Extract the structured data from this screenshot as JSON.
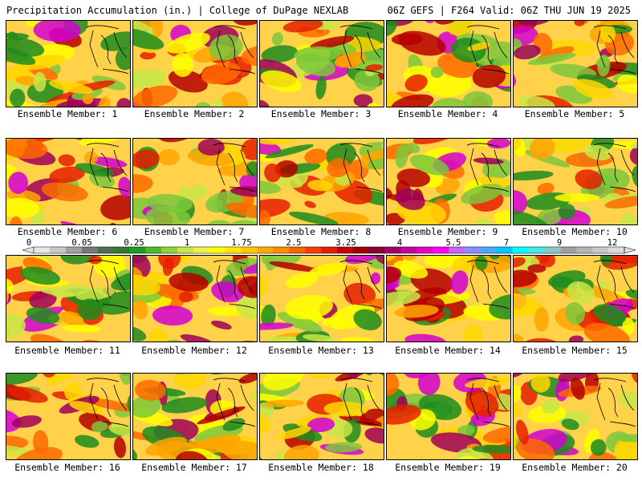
{
  "header": {
    "left": "Precipitation Accumulation (in.) | College of DuPage NEXLAB",
    "right": "06Z GEFS | F264 Valid: 06Z THU JUN 19 2025"
  },
  "members": [
    {
      "label": "Ensemble Member: 1"
    },
    {
      "label": "Ensemble Member: 2"
    },
    {
      "label": "Ensemble Member: 3"
    },
    {
      "label": "Ensemble Member: 4"
    },
    {
      "label": "Ensemble Member: 5"
    },
    {
      "label": "Ensemble Member: 6"
    },
    {
      "label": "Ensemble Member: 7"
    },
    {
      "label": "Ensemble Member: 8"
    },
    {
      "label": "Ensemble Member: 9"
    },
    {
      "label": "Ensemble Member: 10"
    },
    {
      "label": "Ensemble Member: 11"
    },
    {
      "label": "Ensemble Member: 12"
    },
    {
      "label": "Ensemble Member: 13"
    },
    {
      "label": "Ensemble Member: 14"
    },
    {
      "label": "Ensemble Member: 15"
    },
    {
      "label": "Ensemble Member: 16"
    },
    {
      "label": "Ensemble Member: 17"
    },
    {
      "label": "Ensemble Member: 18"
    },
    {
      "label": "Ensemble Member: 19"
    },
    {
      "label": "Ensemble Member: 20"
    }
  ],
  "colorbar": {
    "labels": [
      "0",
      "0.05",
      "0.25",
      "1",
      "1.75",
      "2.5",
      "3.25",
      "4",
      "5.5",
      "7",
      "9",
      "12"
    ],
    "colors": [
      "#e6e6e6",
      "#c8c8c8",
      "#a0a0a0",
      "#787878",
      "#506e50",
      "#2e7d2e",
      "#1e9e1e",
      "#4cb82c",
      "#8cd23a",
      "#c8e646",
      "#f0f046",
      "#ffff00",
      "#ffe600",
      "#ffc800",
      "#ffaa00",
      "#ff8c00",
      "#ff6400",
      "#ff3c00",
      "#e61e00",
      "#c80000",
      "#a00000",
      "#8c0032",
      "#a00064",
      "#c8009a",
      "#e600c8",
      "#ff00ff",
      "#c864ff",
      "#8c8cff",
      "#46aaff",
      "#00c8ff",
      "#00ffff",
      "#46e6e6",
      "#8cc8c8",
      "#a0a0a0",
      "#b4b4b4",
      "#c8c8c8",
      "#dcdcdc"
    ]
  }
}
